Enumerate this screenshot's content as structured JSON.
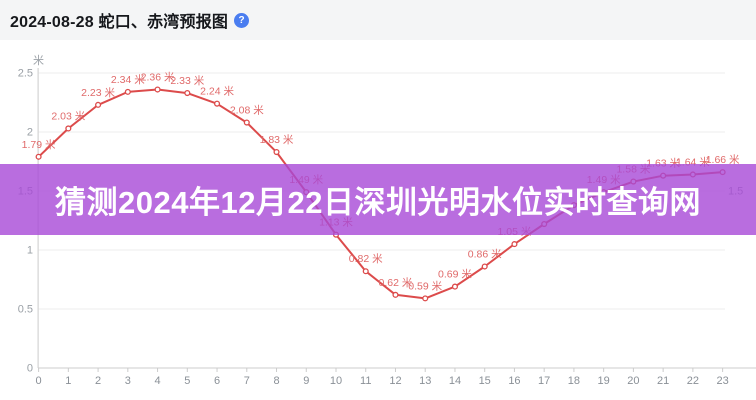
{
  "header": {
    "title": "2024-08-28 蛇口、赤湾预报图",
    "help_icon_glyph": "?"
  },
  "overlay": {
    "text": "猜测2024年12月22日深圳光明水位实时查询网",
    "background_color": "#a749d7"
  },
  "chart_data": {
    "type": "line",
    "title": "2024-08-28 蛇口、赤湾预报图",
    "unit_label": "米",
    "x": [
      0,
      1,
      2,
      3,
      4,
      5,
      6,
      7,
      8,
      9,
      10,
      11,
      12,
      13,
      14,
      15,
      16,
      17,
      18,
      19,
      20,
      21,
      22,
      23
    ],
    "xtick_labels": [
      "0",
      "1",
      "2",
      "3",
      "4",
      "5",
      "6",
      "7",
      "8",
      "9",
      "10",
      "11",
      "12",
      "13",
      "14",
      "15",
      "16",
      "17",
      "18",
      "19",
      "20",
      "21",
      "22",
      "23"
    ],
    "values": [
      1.79,
      2.03,
      2.23,
      2.34,
      2.36,
      2.33,
      2.24,
      2.08,
      1.83,
      1.49,
      1.13,
      0.82,
      0.62,
      0.59,
      0.69,
      0.86,
      1.05,
      1.22,
      1.38,
      1.49,
      1.58,
      1.63,
      1.64,
      1.66
    ],
    "point_labels": [
      "1.79 米",
      "2.03 米",
      "2.23 米",
      "2.34 米",
      "2.36 米",
      "2.33 米",
      "2.24 米",
      "2.08 米",
      "1.83 米",
      "1.49 米",
      "1.13 米",
      "0.82 米",
      "0.62 米",
      "0.59 米",
      "0.69 米",
      "0.86 米",
      "1.05 米",
      null,
      null,
      "1.49 米",
      "1.58 米",
      "1.63 米",
      "1.64 米",
      "1.66 米"
    ],
    "hidden_label_hours": [
      17,
      18
    ],
    "ylim": [
      0,
      2.5
    ],
    "ytick_labels": [
      "0",
      "0.5",
      "1",
      "1.5",
      "2",
      "2.5"
    ],
    "yticks": [
      0,
      0.5,
      1,
      1.5,
      2,
      2.5
    ],
    "right_axis_visible_label": "1.5",
    "grid": true,
    "legend_position": "none",
    "line_color": "#dc4b4b",
    "label_color": "#e06a6a",
    "axis_text_color": "#9aa0a6",
    "grid_color": "#ededed",
    "axis_line_color": "#cccccc"
  }
}
